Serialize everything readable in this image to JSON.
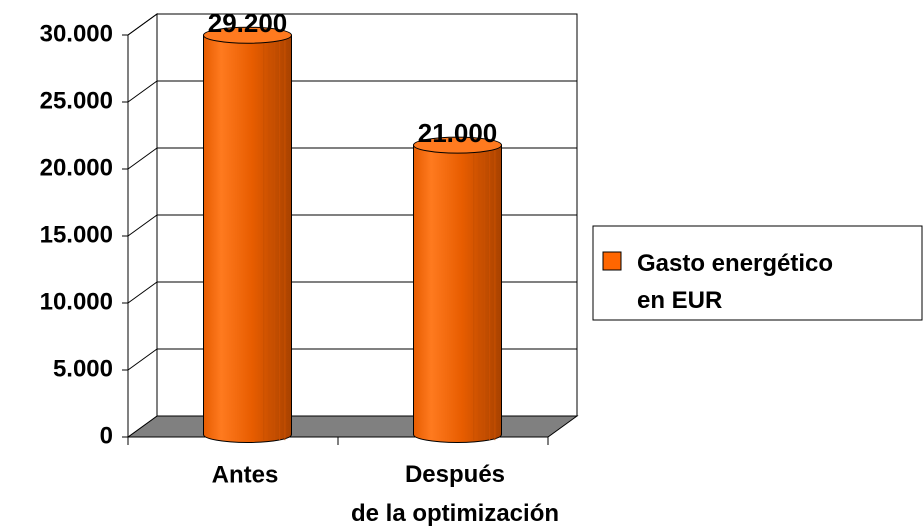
{
  "chart_data": {
    "type": "bar3d",
    "categories": [
      "Antes",
      "Después\nde la optimización"
    ],
    "series": [
      {
        "name": "Gasto energético\nen EUR",
        "color": "#ff6600",
        "values": [
          29200,
          21000
        ],
        "value_labels": [
          "29.200",
          "21.000"
        ]
      }
    ],
    "ylim": [
      0,
      30000
    ],
    "yticks": [
      0,
      {
        "value": 5000,
        "label": "5.000"
      },
      {
        "value": 10000,
        "label": "10.000"
      },
      {
        "value": 15000,
        "label": "15.000"
      },
      {
        "value": 20000,
        "label": "20.000"
      },
      {
        "value": 25000,
        "label": "25.000"
      },
      {
        "value": 30000,
        "label": "30.000"
      }
    ],
    "grid": true,
    "legend": "right"
  }
}
